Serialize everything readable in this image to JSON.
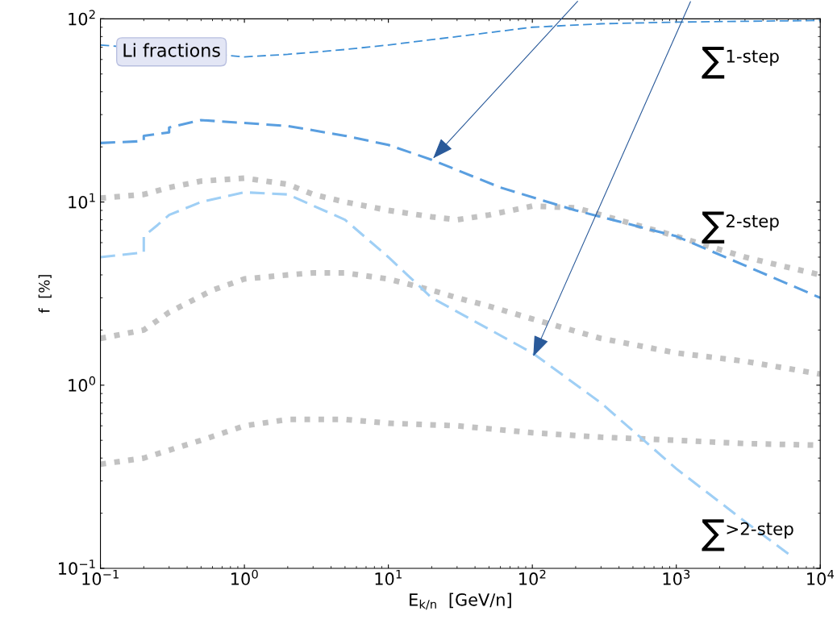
{
  "chart_data": {
    "type": "line",
    "xlabel": "E$_{k/n}$  [GeV/n]",
    "ylabel": "f  [%]",
    "log": "xy",
    "grid": false,
    "xlim": [
      0.1,
      10000
    ],
    "ylim": [
      0.1,
      100
    ],
    "xticks": [
      {
        "value": 0.1,
        "label": "10$^{−1}$"
      },
      {
        "value": 1,
        "label": "10$^{0}$"
      },
      {
        "value": 10,
        "label": "10$^{1}$"
      },
      {
        "value": 100,
        "label": "10$^{2}$"
      },
      {
        "value": 1000,
        "label": "10$^{3}$"
      },
      {
        "value": 10000,
        "label": "10$^{4}$"
      }
    ],
    "yticks": [
      {
        "value": 0.1,
        "label": "10$^{−1}$"
      },
      {
        "value": 1,
        "label": "10$^{0}$"
      },
      {
        "value": 10,
        "label": "10$^{1}$"
      },
      {
        "value": 100,
        "label": "10$^{2}$"
      }
    ],
    "series": [
      {
        "color": "#9a9a9a",
        "line_style": "dotted",
        "x": [
          0.1,
          0.2,
          0.3,
          0.5,
          1,
          2,
          3,
          5,
          10,
          20,
          30,
          50,
          100,
          200,
          300,
          1000,
          3000,
          10000
        ],
        "values": [
          10.5,
          11,
          12,
          13,
          13.5,
          12.5,
          11,
          10,
          9,
          8.3,
          8,
          8.5,
          9.5,
          9.3,
          8.5,
          6.5,
          5,
          4
        ]
      },
      {
        "color": "#9a9a9a",
        "line_style": "dotted",
        "x": [
          0.1,
          0.2,
          0.3,
          0.6,
          1,
          2,
          3,
          5,
          10,
          20,
          30,
          50,
          100,
          300,
          1000,
          3000,
          10000
        ],
        "values": [
          1.8,
          2,
          2.5,
          3.3,
          3.8,
          4,
          4.1,
          4.1,
          3.8,
          3.3,
          3,
          2.7,
          2.3,
          1.8,
          1.5,
          1.35,
          1.15
        ]
      },
      {
        "color": "#9a9a9a",
        "line_style": "dotted",
        "x": [
          0.1,
          0.2,
          0.5,
          1,
          2,
          5,
          10,
          30,
          100,
          300,
          1000,
          3000,
          10000
        ],
        "values": [
          0.37,
          0.4,
          0.5,
          0.6,
          0.65,
          0.65,
          0.62,
          0.6,
          0.55,
          0.52,
          0.5,
          0.48,
          0.47
        ]
      },
      {
        "color": "#3d8fd6",
        "line_style": "dashed",
        "x": [
          0.1,
          1,
          2,
          5,
          10,
          30,
          100,
          300,
          1000,
          3000,
          10000
        ],
        "values": [
          72,
          62,
          64,
          68,
          72,
          80,
          90,
          94,
          96,
          97,
          98
        ]
      },
      {
        "color": "#5a9fe0",
        "line_style": "dashed",
        "x": [
          0.1,
          0.2,
          0.2,
          0.3,
          0.3,
          0.5,
          1,
          2,
          5,
          10,
          20,
          60,
          200,
          1000,
          3000,
          10000
        ],
        "values": [
          21,
          21.5,
          23,
          24,
          25.5,
          28,
          27,
          26,
          23,
          20.5,
          17,
          12,
          9,
          6.5,
          4.5,
          3
        ]
      },
      {
        "color": "#9fcff5",
        "line_style": "dashed",
        "x": [
          0.1,
          0.2,
          0.2,
          0.25,
          0.3,
          0.5,
          1,
          2,
          5,
          10,
          20,
          100,
          300,
          1000,
          3000,
          6000
        ],
        "values": [
          5,
          5.3,
          6.5,
          7.5,
          8.5,
          10,
          11.3,
          11,
          8,
          5,
          3,
          1.5,
          0.8,
          0.35,
          0.18,
          0.12
        ]
      }
    ],
    "annotations": [
      "Li fractions",
      "∑$^{1-step}$",
      "∑$^{2-step}$",
      "∑$^{>2-step}$"
    ]
  }
}
